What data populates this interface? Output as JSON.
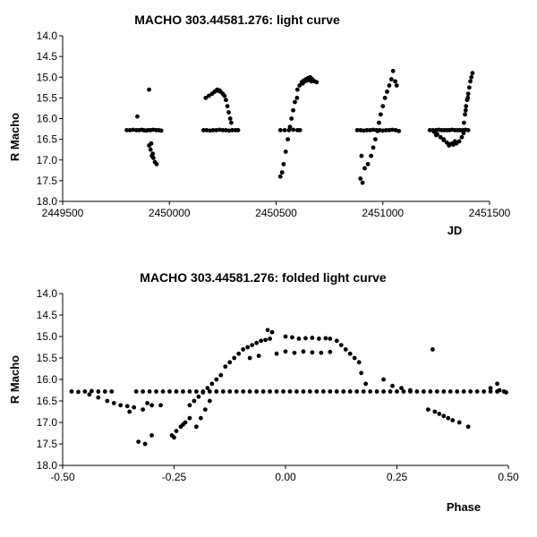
{
  "chart_data": [
    {
      "type": "scatter",
      "title": "MACHO 303.44581.276: light curve",
      "xlabel": "JD",
      "ylabel": "R Macho",
      "xlim": [
        2449500,
        2451500
      ],
      "ylim": [
        14.0,
        18.0
      ],
      "y_inverted": true,
      "xticks": [
        2449500,
        2450000,
        2450500,
        2451000,
        2451500
      ],
      "xtick_labels": [
        "2449500",
        "2450000",
        "2450500",
        "2451000",
        "2451500"
      ],
      "yticks": [
        14.0,
        14.5,
        15.0,
        15.5,
        16.0,
        16.5,
        17.0,
        17.5,
        18.0
      ],
      "ytick_labels": [
        "14.0",
        "14.5",
        "15.0",
        "15.5",
        "16.0",
        "16.5",
        "17.0",
        "17.5",
        "18.0"
      ],
      "grid": false,
      "marker_color": "#000000",
      "points": [
        [
          2449800,
          16.28
        ],
        [
          2449815,
          16.28
        ],
        [
          2449830,
          16.27
        ],
        [
          2449845,
          16.28
        ],
        [
          2449858,
          16.28
        ],
        [
          2449870,
          16.27
        ],
        [
          2449880,
          16.28
        ],
        [
          2449890,
          16.29
        ],
        [
          2449900,
          16.28
        ],
        [
          2449912,
          16.28
        ],
        [
          2449925,
          16.27
        ],
        [
          2449938,
          16.28
        ],
        [
          2449950,
          16.28
        ],
        [
          2449962,
          16.29
        ],
        [
          2449850,
          15.95
        ],
        [
          2449905,
          15.3
        ],
        [
          2449905,
          16.65
        ],
        [
          2449912,
          16.75
        ],
        [
          2449918,
          16.9
        ],
        [
          2449925,
          16.95
        ],
        [
          2449932,
          17.05
        ],
        [
          2449940,
          17.1
        ],
        [
          2449915,
          16.6
        ],
        [
          2449922,
          16.85
        ],
        [
          2450160,
          16.28
        ],
        [
          2450175,
          16.28
        ],
        [
          2450190,
          16.29
        ],
        [
          2450205,
          16.28
        ],
        [
          2450220,
          16.28
        ],
        [
          2450235,
          16.27
        ],
        [
          2450250,
          16.28
        ],
        [
          2450265,
          16.28
        ],
        [
          2450280,
          16.29
        ],
        [
          2450295,
          16.28
        ],
        [
          2450310,
          16.28
        ],
        [
          2450322,
          16.28
        ],
        [
          2450170,
          15.5
        ],
        [
          2450185,
          15.45
        ],
        [
          2450200,
          15.4
        ],
        [
          2450212,
          15.35
        ],
        [
          2450220,
          15.32
        ],
        [
          2450230,
          15.33
        ],
        [
          2450240,
          15.35
        ],
        [
          2450250,
          15.4
        ],
        [
          2450258,
          15.45
        ],
        [
          2450265,
          15.55
        ],
        [
          2450272,
          15.7
        ],
        [
          2450278,
          15.85
        ],
        [
          2450285,
          16.0
        ],
        [
          2450290,
          16.1
        ],
        [
          2450225,
          15.3
        ],
        [
          2450235,
          15.32
        ],
        [
          2450520,
          16.28
        ],
        [
          2450540,
          16.28
        ],
        [
          2450560,
          16.28
        ],
        [
          2450580,
          16.27
        ],
        [
          2450600,
          16.28
        ],
        [
          2450612,
          16.28
        ],
        [
          2450520,
          17.4
        ],
        [
          2450528,
          17.3
        ],
        [
          2450535,
          17.1
        ],
        [
          2450545,
          16.8
        ],
        [
          2450555,
          16.5
        ],
        [
          2450565,
          16.2
        ],
        [
          2450572,
          16.0
        ],
        [
          2450580,
          15.8
        ],
        [
          2450588,
          15.6
        ],
        [
          2450598,
          15.5
        ],
        [
          2450600,
          15.3
        ],
        [
          2450610,
          15.2
        ],
        [
          2450620,
          15.12
        ],
        [
          2450630,
          15.08
        ],
        [
          2450640,
          15.05
        ],
        [
          2450650,
          15.02
        ],
        [
          2450660,
          15.0
        ],
        [
          2450670,
          15.05
        ],
        [
          2450680,
          15.1
        ],
        [
          2450690,
          15.12
        ],
        [
          2450625,
          15.15
        ],
        [
          2450635,
          15.1
        ],
        [
          2450645,
          15.08
        ],
        [
          2450655,
          15.06
        ],
        [
          2450665,
          15.1
        ],
        [
          2450880,
          16.28
        ],
        [
          2450895,
          16.28
        ],
        [
          2450910,
          16.29
        ],
        [
          2450925,
          16.28
        ],
        [
          2450940,
          16.28
        ],
        [
          2450955,
          16.27
        ],
        [
          2450970,
          16.28
        ],
        [
          2450985,
          16.28
        ],
        [
          2451000,
          16.29
        ],
        [
          2451015,
          16.28
        ],
        [
          2451030,
          16.28
        ],
        [
          2451045,
          16.27
        ],
        [
          2451060,
          16.28
        ],
        [
          2451075,
          16.3
        ],
        [
          2450900,
          16.9
        ],
        [
          2450895,
          17.45
        ],
        [
          2450905,
          17.55
        ],
        [
          2450915,
          17.2
        ],
        [
          2450930,
          17.1
        ],
        [
          2450945,
          16.9
        ],
        [
          2450955,
          16.7
        ],
        [
          2450965,
          16.5
        ],
        [
          2450975,
          16.3
        ],
        [
          2450982,
          16.1
        ],
        [
          2450990,
          15.9
        ],
        [
          2451000,
          15.7
        ],
        [
          2451010,
          15.5
        ],
        [
          2451020,
          15.35
        ],
        [
          2451030,
          15.2
        ],
        [
          2451040,
          15.05
        ],
        [
          2451048,
          14.85
        ],
        [
          2451058,
          15.1
        ],
        [
          2451065,
          15.2
        ],
        [
          2451220,
          16.28
        ],
        [
          2451235,
          16.28
        ],
        [
          2451250,
          16.28
        ],
        [
          2451262,
          16.27
        ],
        [
          2451275,
          16.28
        ],
        [
          2451288,
          16.28
        ],
        [
          2451300,
          16.28
        ],
        [
          2451312,
          16.28
        ],
        [
          2451325,
          16.27
        ],
        [
          2451338,
          16.28
        ],
        [
          2451350,
          16.28
        ],
        [
          2451362,
          16.28
        ],
        [
          2451375,
          16.28
        ],
        [
          2451388,
          16.27
        ],
        [
          2451400,
          16.28
        ],
        [
          2451240,
          16.32
        ],
        [
          2451255,
          16.38
        ],
        [
          2451270,
          16.45
        ],
        [
          2451285,
          16.52
        ],
        [
          2451300,
          16.58
        ],
        [
          2451315,
          16.62
        ],
        [
          2451330,
          16.63
        ],
        [
          2451345,
          16.6
        ],
        [
          2451358,
          16.55
        ],
        [
          2451370,
          16.45
        ],
        [
          2451378,
          16.35
        ],
        [
          2451310,
          16.65
        ],
        [
          2451325,
          16.6
        ],
        [
          2451340,
          16.58
        ],
        [
          2451250,
          16.4
        ],
        [
          2451285,
          16.5
        ],
        [
          2451338,
          16.55
        ],
        [
          2451380,
          16.1
        ],
        [
          2451385,
          15.9
        ],
        [
          2451390,
          15.7
        ],
        [
          2451395,
          15.55
        ],
        [
          2451400,
          15.4
        ],
        [
          2451405,
          15.25
        ],
        [
          2451410,
          15.1
        ],
        [
          2451415,
          15.0
        ],
        [
          2451420,
          14.9
        ],
        [
          2451398,
          15.5
        ],
        [
          2451388,
          15.8
        ]
      ]
    },
    {
      "type": "scatter",
      "title": "MACHO 303.44581.276: folded light curve",
      "xlabel": "Phase",
      "ylabel": "R Macho",
      "xlim": [
        -0.5,
        0.5
      ],
      "ylim": [
        14.0,
        18.0
      ],
      "y_inverted": true,
      "xticks": [
        -0.5,
        -0.25,
        0,
        0.25,
        0.5
      ],
      "xtick_labels": [
        "-0.50",
        "-0.25",
        "0.00",
        "0.25",
        "0.50"
      ],
      "yticks": [
        14.0,
        14.5,
        15.0,
        15.5,
        16.0,
        16.5,
        17.0,
        17.5,
        18.0
      ],
      "ytick_labels": [
        "14.0",
        "14.5",
        "15.0",
        "15.5",
        "16.0",
        "16.5",
        "17.0",
        "17.5",
        "18.0"
      ],
      "grid": false,
      "marker_color": "#000000",
      "points": [
        [
          -0.48,
          16.28
        ],
        [
          -0.465,
          16.29
        ],
        [
          -0.45,
          16.28
        ],
        [
          -0.435,
          16.27
        ],
        [
          -0.42,
          16.28
        ],
        [
          -0.405,
          16.28
        ],
        [
          -0.39,
          16.28
        ],
        [
          -0.275,
          16.28
        ],
        [
          -0.26,
          16.28
        ],
        [
          -0.245,
          16.28
        ],
        [
          -0.23,
          16.28
        ],
        [
          -0.215,
          16.28
        ],
        [
          -0.2,
          16.28
        ],
        [
          -0.185,
          16.28
        ],
        [
          -0.17,
          16.28
        ],
        [
          -0.155,
          16.28
        ],
        [
          -0.14,
          16.28
        ],
        [
          -0.125,
          16.28
        ],
        [
          -0.11,
          16.28
        ],
        [
          -0.095,
          16.28
        ],
        [
          -0.08,
          16.28
        ],
        [
          -0.065,
          16.28
        ],
        [
          -0.05,
          16.28
        ],
        [
          -0.035,
          16.28
        ],
        [
          -0.02,
          16.28
        ],
        [
          -0.005,
          16.28
        ],
        [
          0.01,
          16.28
        ],
        [
          0.025,
          16.28
        ],
        [
          0.04,
          16.28
        ],
        [
          0.055,
          16.28
        ],
        [
          0.07,
          16.28
        ],
        [
          0.085,
          16.28
        ],
        [
          0.1,
          16.28
        ],
        [
          0.115,
          16.28
        ],
        [
          0.13,
          16.28
        ],
        [
          0.145,
          16.28
        ],
        [
          0.16,
          16.28
        ],
        [
          0.175,
          16.28
        ],
        [
          0.19,
          16.28
        ],
        [
          0.205,
          16.28
        ],
        [
          0.22,
          16.28
        ],
        [
          0.235,
          16.28
        ],
        [
          0.25,
          16.28
        ],
        [
          0.265,
          16.28
        ],
        [
          0.28,
          16.28
        ],
        [
          0.295,
          16.28
        ],
        [
          0.31,
          16.28
        ],
        [
          0.325,
          16.28
        ],
        [
          0.34,
          16.28
        ],
        [
          0.355,
          16.28
        ],
        [
          0.37,
          16.28
        ],
        [
          0.385,
          16.28
        ],
        [
          0.4,
          16.28
        ],
        [
          0.415,
          16.28
        ],
        [
          0.43,
          16.28
        ],
        [
          0.445,
          16.28
        ],
        [
          0.46,
          16.28
        ],
        [
          0.475,
          16.28
        ],
        [
          0.49,
          16.28
        ],
        [
          -0.335,
          16.28
        ],
        [
          -0.32,
          16.28
        ],
        [
          -0.305,
          16.28
        ],
        [
          -0.29,
          16.28
        ],
        [
          -0.44,
          16.35
        ],
        [
          -0.42,
          16.42
        ],
        [
          -0.4,
          16.5
        ],
        [
          -0.385,
          16.55
        ],
        [
          -0.37,
          16.6
        ],
        [
          -0.355,
          16.62
        ],
        [
          -0.34,
          16.65
        ],
        [
          -0.32,
          16.7
        ],
        [
          -0.3,
          16.6
        ],
        [
          -0.28,
          16.6
        ],
        [
          -0.35,
          16.75
        ],
        [
          -0.31,
          16.55
        ],
        [
          -0.33,
          17.45
        ],
        [
          -0.315,
          17.5
        ],
        [
          -0.3,
          17.3
        ],
        [
          -0.255,
          17.3
        ],
        [
          -0.245,
          17.2
        ],
        [
          -0.235,
          17.1
        ],
        [
          -0.225,
          17.0
        ],
        [
          -0.215,
          16.9
        ],
        [
          -0.25,
          17.35
        ],
        [
          -0.23,
          17.05
        ],
        [
          -0.215,
          16.6
        ],
        [
          -0.205,
          16.5
        ],
        [
          -0.195,
          16.4
        ],
        [
          -0.185,
          16.3
        ],
        [
          -0.175,
          16.2
        ],
        [
          -0.165,
          16.1
        ],
        [
          -0.155,
          16.0
        ],
        [
          -0.145,
          15.9
        ],
        [
          -0.135,
          15.7
        ],
        [
          -0.125,
          15.6
        ],
        [
          -0.115,
          15.5
        ],
        [
          -0.105,
          15.4
        ],
        [
          -0.095,
          15.3
        ],
        [
          -0.085,
          15.25
        ],
        [
          -0.075,
          15.2
        ],
        [
          -0.065,
          15.15
        ],
        [
          -0.055,
          15.1
        ],
        [
          -0.045,
          15.08
        ],
        [
          -0.035,
          15.05
        ],
        [
          -0.03,
          14.9
        ],
        [
          -0.04,
          14.85
        ],
        [
          -0.2,
          17.1
        ],
        [
          -0.19,
          16.9
        ],
        [
          -0.18,
          16.7
        ],
        [
          -0.17,
          16.5
        ],
        [
          0.0,
          15.0
        ],
        [
          0.015,
          15.02
        ],
        [
          0.03,
          15.05
        ],
        [
          0.045,
          15.04
        ],
        [
          0.06,
          15.03
        ],
        [
          0.075,
          15.05
        ],
        [
          0.09,
          15.04
        ],
        [
          0.1,
          15.05
        ],
        [
          0.115,
          15.1
        ],
        [
          0.125,
          15.2
        ],
        [
          0.135,
          15.3
        ],
        [
          0.145,
          15.4
        ],
        [
          0.155,
          15.5
        ],
        [
          0.165,
          15.6
        ],
        [
          -0.02,
          15.4
        ],
        [
          0.0,
          15.35
        ],
        [
          0.02,
          15.38
        ],
        [
          0.04,
          15.35
        ],
        [
          0.06,
          15.37
        ],
        [
          0.08,
          15.38
        ],
        [
          0.1,
          15.36
        ],
        [
          -0.08,
          15.5
        ],
        [
          -0.06,
          15.45
        ],
        [
          0.17,
          15.85
        ],
        [
          0.18,
          16.1
        ],
        [
          0.22,
          16.0
        ],
        [
          0.24,
          16.15
        ],
        [
          0.26,
          16.2
        ],
        [
          0.28,
          16.25
        ],
        [
          0.33,
          15.3
        ],
        [
          0.32,
          16.7
        ],
        [
          0.335,
          16.75
        ],
        [
          0.345,
          16.8
        ],
        [
          0.355,
          16.85
        ],
        [
          0.365,
          16.9
        ],
        [
          0.375,
          16.95
        ],
        [
          0.39,
          17.0
        ],
        [
          0.41,
          17.1
        ],
        [
          0.46,
          16.2
        ],
        [
          0.475,
          16.1
        ],
        [
          0.48,
          16.25
        ],
        [
          0.495,
          16.3
        ]
      ]
    }
  ]
}
